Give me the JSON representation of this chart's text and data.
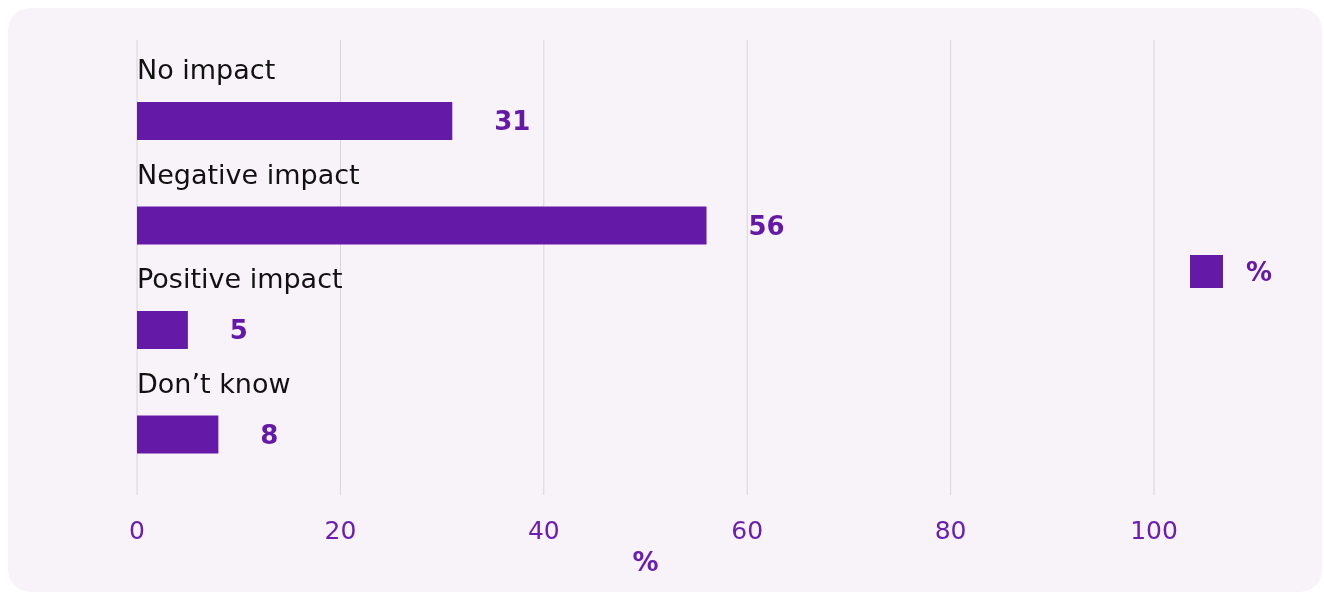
{
  "chart_data": {
    "type": "bar",
    "orientation": "horizontal",
    "categories": [
      "No impact",
      "Negative impact",
      "Positive impact",
      "Don’t know"
    ],
    "series": [
      {
        "name": "%",
        "color": "#6419a7",
        "values": [
          31,
          56,
          5,
          8
        ]
      }
    ],
    "xlim": [
      0,
      100
    ],
    "xticks": [
      0,
      20,
      40,
      60,
      80,
      100
    ],
    "xlabel": "%",
    "grid": "x",
    "legend": "right",
    "data_labels": true
  }
}
